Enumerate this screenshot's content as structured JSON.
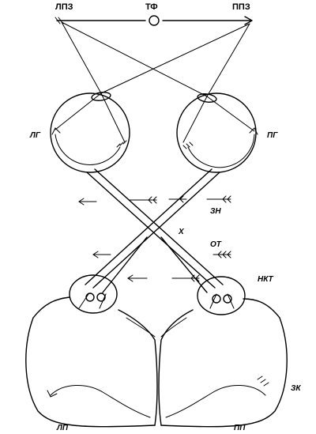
{
  "labels": {
    "left_visual_field": "ЛПЗ",
    "fixation_point": "ТФ",
    "right_visual_field": "ППЗ",
    "left_eye": "ЛГ",
    "right_eye": "ПГ",
    "optic_nerve": "ЗН",
    "chiasm": "Х",
    "optic_tract": "ОТ",
    "lgn": "НКТ",
    "visual_cortex": "ЗК",
    "left_hemisphere": "ЛП",
    "right_hemisphere": "ПП"
  }
}
